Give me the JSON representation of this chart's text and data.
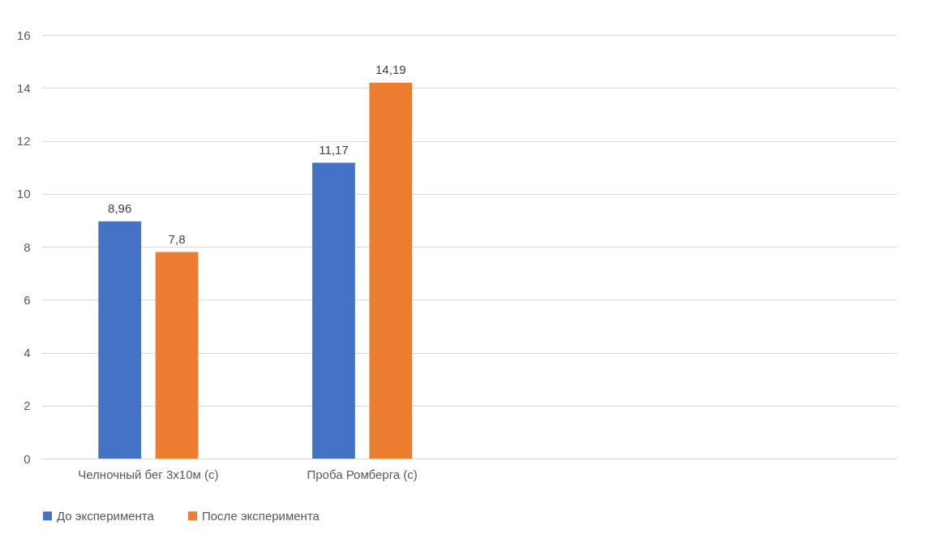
{
  "chart_data": {
    "type": "bar",
    "categories": [
      "Челночный бег 3x10м (с)",
      "Проба Ромберга (с)",
      null,
      null
    ],
    "series": [
      {
        "name": "До эксперимента",
        "color": "#4472c4",
        "values": [
          8.96,
          11.17,
          null,
          null
        ],
        "value_labels": [
          "8,96",
          "11,17",
          null,
          null
        ]
      },
      {
        "name": "После эксперимента",
        "color": "#ed7d31",
        "values": [
          7.8,
          14.19,
          null,
          null
        ],
        "value_labels": [
          "7,8",
          "14,19",
          null,
          null
        ]
      }
    ],
    "ylim": [
      0,
      16
    ],
    "yticks": [
      0,
      2,
      4,
      6,
      8,
      10,
      12,
      14,
      16
    ],
    "grid": "y",
    "legend": "bottom"
  }
}
